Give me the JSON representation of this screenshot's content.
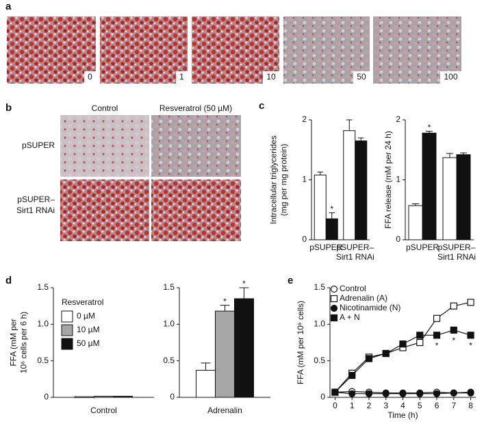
{
  "panel_labels": [
    "a",
    "b",
    "c",
    "d",
    "e"
  ],
  "panel_a": {
    "image_labels": [
      "0",
      "1",
      "10",
      "50",
      "100"
    ]
  },
  "panel_b": {
    "columns": [
      "Control",
      "Resveratrol (50 µM)"
    ],
    "rows": [
      [
        "pSUPER"
      ],
      [
        "pSUPER–",
        "Sirt1 RNAi"
      ]
    ]
  },
  "chart_data": [
    {
      "type": "bar",
      "ylabel": [
        "Intracellular triglycerides",
        "(mg per mg protein)"
      ],
      "categories": [
        [
          "pSUPER"
        ],
        [
          "pSUPER–",
          "Sirt1 RNAi"
        ]
      ],
      "series": [
        {
          "color": "#ffffff",
          "values": [
            1.08,
            1.82
          ],
          "errors": [
            0.05,
            0.18
          ],
          "annotations": [
            null,
            null
          ]
        },
        {
          "color": "#111111",
          "values": [
            0.35,
            1.65
          ],
          "errors": [
            0.1,
            0.05
          ],
          "annotations": [
            "*",
            null
          ]
        }
      ],
      "ylim": [
        0,
        2
      ],
      "yticks": [
        0,
        1,
        2
      ]
    },
    {
      "type": "bar",
      "ylabel": [
        "FFA release (mM per 24 h)"
      ],
      "categories": [
        [
          "pSUPER"
        ],
        [
          "pSUPER–",
          "Sirt1 RNAi"
        ]
      ],
      "series": [
        {
          "color": "#ffffff",
          "values": [
            0.57,
            1.37
          ],
          "errors": [
            0.03,
            0.07
          ],
          "annotations": [
            null,
            null
          ]
        },
        {
          "color": "#111111",
          "values": [
            1.78,
            1.42
          ],
          "errors": [
            0.03,
            0.03
          ],
          "annotations": [
            "*",
            null
          ]
        }
      ],
      "ylim": [
        0,
        2
      ],
      "yticks": [
        0,
        1,
        2
      ]
    },
    {
      "type": "bar",
      "ylabel": [
        "FFA (mM per",
        "10⁶ cells per 6 h)"
      ],
      "legend_title": "Resveratrol",
      "categories": [
        "Control",
        "Adrenalin"
      ],
      "series": [
        {
          "name": "0 µM",
          "color": "#ffffff",
          "values": [
            0.01,
            0.37
          ],
          "errors": [
            0,
            0.1
          ],
          "annotations": [
            null,
            null
          ]
        },
        {
          "name": "10 µM",
          "color": "#a6a6a6",
          "values": [
            0.015,
            1.18
          ],
          "errors": [
            0,
            0.08
          ],
          "annotations": [
            null,
            "*"
          ]
        },
        {
          "name": "50 µM",
          "color": "#111111",
          "values": [
            0.015,
            1.35
          ],
          "errors": [
            0,
            0.15
          ],
          "annotations": [
            null,
            "*"
          ]
        }
      ],
      "ylim": [
        0,
        1.5
      ],
      "yticks": [
        0,
        0.5,
        {
          "value": 1.0,
          "label": "1.0"
        },
        1.5
      ]
    },
    {
      "type": "line",
      "ylabel": [
        "FFA (mM per 10⁶ cells)"
      ],
      "xlabel": "Time (h)",
      "x": [
        0,
        1,
        2,
        3,
        4,
        5,
        6,
        7,
        8
      ],
      "series": [
        {
          "name": "Control",
          "marker": "circle",
          "filled": false,
          "values": [
            0.07,
            0.08,
            0.07,
            0.06,
            0.06,
            0.06,
            0.07,
            0.06,
            0.07
          ],
          "annotations": [
            null,
            null,
            null,
            null,
            null,
            null,
            null,
            null,
            null
          ]
        },
        {
          "name": "Adrenalin (A)",
          "marker": "square",
          "filled": false,
          "values": [
            0.07,
            0.33,
            0.55,
            0.6,
            0.68,
            0.75,
            1.08,
            1.25,
            1.3
          ],
          "annotations": [
            null,
            null,
            null,
            null,
            null,
            null,
            null,
            null,
            null
          ]
        },
        {
          "name": "Nicotinamide (N)",
          "marker": "circle",
          "filled": true,
          "values": [
            0.07,
            0.05,
            0.05,
            0.05,
            0.05,
            0.05,
            0.05,
            0.06,
            0.06
          ],
          "annotations": [
            null,
            null,
            null,
            null,
            null,
            null,
            null,
            null,
            null
          ]
        },
        {
          "name": "A + N",
          "marker": "square",
          "filled": true,
          "values": [
            0.07,
            0.3,
            0.53,
            0.6,
            0.73,
            0.85,
            0.85,
            0.92,
            0.85
          ],
          "annotations": [
            null,
            null,
            null,
            null,
            null,
            null,
            "*",
            "*",
            "*"
          ]
        }
      ],
      "xlim": [
        -0.3,
        8.3
      ],
      "xticks": [
        0,
        1,
        2,
        3,
        4,
        5,
        6,
        7,
        8
      ],
      "ylim": [
        0,
        1.5
      ],
      "yticks": [
        0,
        0.5,
        {
          "value": 1.0,
          "label": "1.0"
        },
        1.5
      ]
    }
  ]
}
